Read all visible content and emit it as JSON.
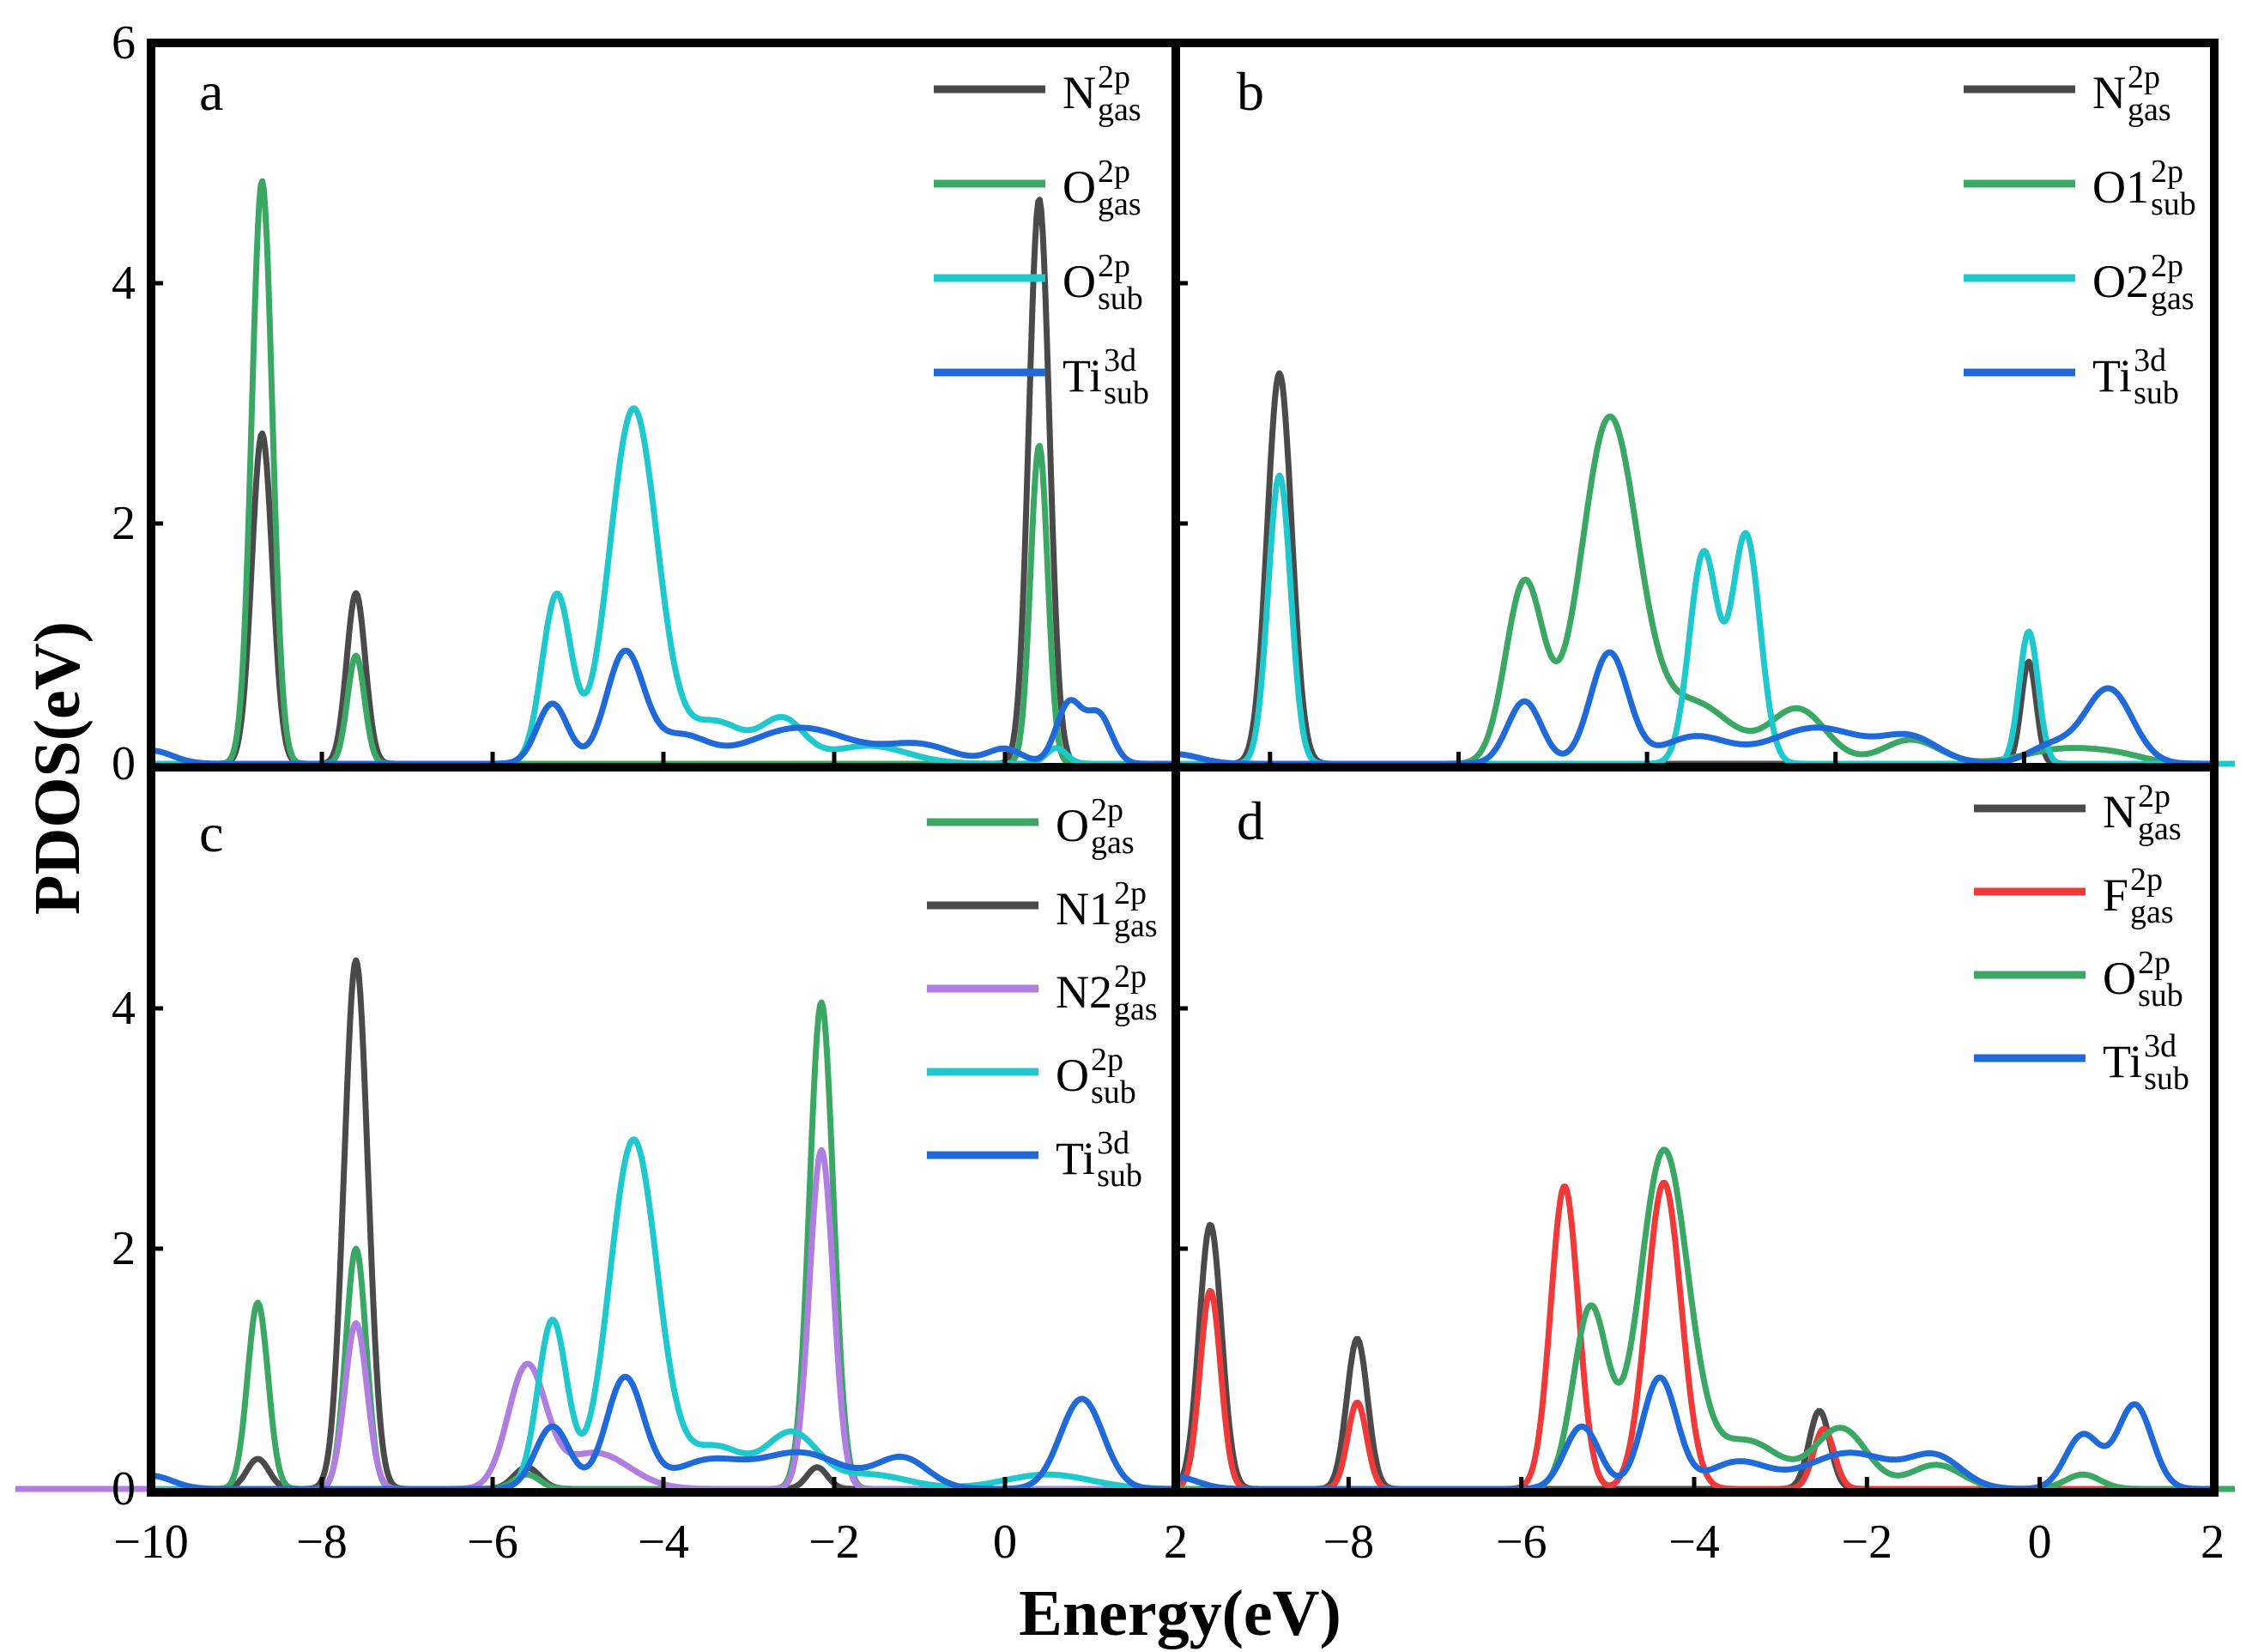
{
  "figure": {
    "ylabel": "PDOS(eV)",
    "xlabel": "Energy(eV)",
    "colors": {
      "gray": "#4a4a4a",
      "green": "#3aa864",
      "cyan": "#1ec8cc",
      "blue": "#1f6ad8",
      "purple": "#b07ee0",
      "red": "#f03a3a"
    }
  },
  "chart_data": [
    {
      "panel": "a",
      "type": "line",
      "xlim": [
        -10,
        2
      ],
      "ylim": [
        0,
        6
      ],
      "xticks": [
        "−10",
        "−8",
        "−6",
        "−4",
        "−2",
        "0",
        "2"
      ],
      "yticks": [
        "0",
        "2",
        "4",
        "6"
      ],
      "xlabel": "Energy(eV)",
      "ylabel": "PDOS(eV)",
      "legend": [
        {
          "base": "N",
          "sup": "2p",
          "sub": "gas",
          "color_key": "gray"
        },
        {
          "base": "O",
          "sup": "2p",
          "sub": "gas",
          "color_key": "green"
        },
        {
          "base": "O",
          "sup": "2p",
          "sub": "sub",
          "color_key": "cyan"
        },
        {
          "base": "Ti",
          "sup": "3d",
          "sub": "sub",
          "color_key": "blue"
        }
      ],
      "series": [
        {
          "name": "N_gas^2p",
          "color_key": "gray",
          "peaks": [
            [
              -8.7,
              2.75,
              0.12
            ],
            [
              -7.6,
              1.42,
              0.11
            ],
            [
              0.4,
              4.7,
              0.12
            ]
          ]
        },
        {
          "name": "O_gas^2p",
          "color_key": "green",
          "peaks": [
            [
              -8.7,
              4.85,
              0.12
            ],
            [
              -7.6,
              0.9,
              0.1
            ],
            [
              0.4,
              2.65,
              0.1
            ]
          ]
        },
        {
          "name": "O_sub^2p",
          "color_key": "cyan",
          "peaks": [
            [
              -5.25,
              1.4,
              0.17
            ],
            [
              -4.35,
              2.95,
              0.28
            ],
            [
              -3.4,
              0.35,
              0.35
            ],
            [
              -2.6,
              0.35,
              0.25
            ],
            [
              -1.6,
              0.15,
              0.45
            ],
            [
              0.6,
              0.13,
              0.12
            ]
          ]
        },
        {
          "name": "Ti_sub^3d",
          "color_key": "blue",
          "peaks": [
            [
              -10,
              0.11,
              0.25
            ],
            [
              -5.3,
              0.5,
              0.18
            ],
            [
              -4.45,
              0.92,
              0.22
            ],
            [
              -3.8,
              0.22,
              0.3
            ],
            [
              -2.4,
              0.3,
              0.6
            ],
            [
              -1.0,
              0.15,
              0.4
            ],
            [
              0.0,
              0.12,
              0.2
            ],
            [
              0.75,
              0.5,
              0.15
            ],
            [
              1.1,
              0.4,
              0.15
            ]
          ]
        }
      ]
    },
    {
      "panel": "b",
      "type": "line",
      "xlim": [
        -9,
        2
      ],
      "ylim": [
        0,
        6
      ],
      "xticks": [],
      "yticks": [],
      "legend": [
        {
          "base": "N",
          "sup": "2p",
          "sub": "gas",
          "color_key": "gray"
        },
        {
          "base": "O1",
          "sup": "2p",
          "sub": "sub",
          "color_key": "green"
        },
        {
          "base": "O2",
          "sup": "2p",
          "sub": "gas",
          "color_key": "cyan"
        },
        {
          "base": "Ti",
          "sup": "3d",
          "sub": "sub",
          "color_key": "blue"
        }
      ],
      "series": [
        {
          "name": "N_gas^2p",
          "color_key": "gray",
          "peaks": [
            [
              -7.9,
              3.25,
              0.13
            ],
            [
              0.05,
              0.85,
              0.08
            ]
          ]
        },
        {
          "name": "O1_sub^2p",
          "color_key": "green",
          "peaks": [
            [
              -5.3,
              1.5,
              0.2
            ],
            [
              -4.4,
              2.85,
              0.3
            ],
            [
              -3.5,
              0.5,
              0.4
            ],
            [
              -2.4,
              0.45,
              0.3
            ],
            [
              -1.2,
              0.2,
              0.3
            ],
            [
              0.4,
              0.12,
              0.4
            ],
            [
              1.0,
              0.06,
              0.3
            ]
          ]
        },
        {
          "name": "O2_gas^2p",
          "color_key": "cyan",
          "peaks": [
            [
              -7.9,
              2.4,
              0.12
            ],
            [
              -3.4,
              1.75,
              0.15
            ],
            [
              -2.95,
              1.9,
              0.15
            ],
            [
              0.05,
              1.1,
              0.1
            ]
          ]
        },
        {
          "name": "Ti_sub^3d",
          "color_key": "blue",
          "peaks": [
            [
              -9.0,
              0.08,
              0.25
            ],
            [
              -5.3,
              0.52,
              0.18
            ],
            [
              -4.4,
              0.92,
              0.2
            ],
            [
              -3.5,
              0.22,
              0.35
            ],
            [
              -2.2,
              0.3,
              0.5
            ],
            [
              -1.2,
              0.2,
              0.3
            ],
            [
              0.3,
              0.15,
              0.25
            ],
            [
              0.9,
              0.62,
              0.25
            ]
          ]
        }
      ]
    },
    {
      "panel": "c",
      "type": "line",
      "xlim": [
        -10,
        2
      ],
      "ylim": [
        0,
        6
      ],
      "xticks": [
        "−10",
        "−8",
        "−6",
        "−4",
        "−2",
        "0",
        "2"
      ],
      "yticks": [
        "0",
        "2",
        "4"
      ],
      "legend": [
        {
          "base": "O",
          "sup": "2p",
          "sub": "gas",
          "color_key": "green"
        },
        {
          "base": "N1",
          "sup": "2p",
          "sub": "gas",
          "color_key": "gray"
        },
        {
          "base": "N2",
          "sup": "2p",
          "sub": "gas",
          "color_key": "purple"
        },
        {
          "base": "O",
          "sup": "2p",
          "sub": "sub",
          "color_key": "cyan"
        },
        {
          "base": "Ti",
          "sup": "3d",
          "sub": "sub",
          "color_key": "blue"
        }
      ],
      "series": [
        {
          "name": "N1_gas^2p",
          "color_key": "gray",
          "peaks": [
            [
              -8.75,
              0.25,
              0.13
            ],
            [
              -7.6,
              4.4,
              0.14
            ],
            [
              -5.6,
              0.18,
              0.15
            ],
            [
              -2.2,
              0.18,
              0.12
            ]
          ]
        },
        {
          "name": "O_gas^2p",
          "color_key": "green",
          "peaks": [
            [
              -8.75,
              1.55,
              0.12
            ],
            [
              -7.6,
              2.0,
              0.12
            ],
            [
              -5.6,
              0.12,
              0.15
            ],
            [
              -2.15,
              4.05,
              0.14
            ]
          ]
        },
        {
          "name": "N2_gas^2p",
          "color_key": "purple",
          "peaks": [
            [
              -7.6,
              1.38,
              0.13
            ],
            [
              -5.6,
              1.0,
              0.22
            ],
            [
              -4.8,
              0.3,
              0.4
            ],
            [
              -2.15,
              2.82,
              0.14
            ]
          ]
        },
        {
          "name": "O_sub^2p",
          "color_key": "cyan",
          "peaks": [
            [
              -5.3,
              1.4,
              0.17
            ],
            [
              -4.35,
              2.9,
              0.28
            ],
            [
              -3.4,
              0.35,
              0.35
            ],
            [
              -2.5,
              0.45,
              0.3
            ],
            [
              -1.6,
              0.12,
              0.45
            ],
            [
              0.5,
              0.12,
              0.5
            ]
          ]
        },
        {
          "name": "Ti_sub^3d",
          "color_key": "blue",
          "peaks": [
            [
              -10,
              0.11,
              0.25
            ],
            [
              -5.3,
              0.52,
              0.2
            ],
            [
              -4.45,
              0.92,
              0.22
            ],
            [
              -3.5,
              0.22,
              0.4
            ],
            [
              -2.4,
              0.3,
              0.5
            ],
            [
              -1.2,
              0.25,
              0.3
            ],
            [
              0.9,
              0.75,
              0.25
            ]
          ]
        }
      ]
    },
    {
      "panel": "d",
      "type": "line",
      "xlim": [
        -10,
        2
      ],
      "ylim": [
        0,
        6
      ],
      "xticks": [
        "−8",
        "−6",
        "−4",
        "−2",
        "0",
        "2"
      ],
      "yticks": [],
      "legend": [
        {
          "base": "N",
          "sup": "2p",
          "sub": "gas",
          "color_key": "gray"
        },
        {
          "base": "F",
          "sup": "2p",
          "sub": "gas",
          "color_key": "red"
        },
        {
          "base": "O",
          "sup": "2p",
          "sub": "sub",
          "color_key": "green"
        },
        {
          "base": "Ti",
          "sup": "3d",
          "sub": "sub",
          "color_key": "blue"
        }
      ],
      "series": [
        {
          "name": "N_gas^2p",
          "color_key": "gray",
          "peaks": [
            [
              -9.6,
              2.2,
              0.13
            ],
            [
              -7.9,
              1.25,
              0.12
            ],
            [
              -2.55,
              0.65,
              0.12
            ]
          ]
        },
        {
          "name": "F_gas^2p",
          "color_key": "red",
          "peaks": [
            [
              -9.6,
              1.65,
              0.12
            ],
            [
              -7.9,
              0.72,
              0.11
            ],
            [
              -5.5,
              2.52,
              0.16
            ],
            [
              -4.35,
              2.55,
              0.2
            ],
            [
              -2.5,
              0.5,
              0.12
            ]
          ]
        },
        {
          "name": "O_sub^2p",
          "color_key": "green",
          "peaks": [
            [
              -5.2,
              1.5,
              0.2
            ],
            [
              -4.35,
              2.8,
              0.28
            ],
            [
              -3.4,
              0.4,
              0.4
            ],
            [
              -2.3,
              0.5,
              0.3
            ],
            [
              -1.2,
              0.2,
              0.3
            ],
            [
              0.5,
              0.12,
              0.2
            ]
          ]
        },
        {
          "name": "Ti_sub^3d",
          "color_key": "blue",
          "peaks": [
            [
              -10,
              0.1,
              0.25
            ],
            [
              -5.3,
              0.52,
              0.2
            ],
            [
              -4.4,
              0.92,
              0.2
            ],
            [
              -3.5,
              0.22,
              0.35
            ],
            [
              -2.2,
              0.3,
              0.5
            ],
            [
              -1.2,
              0.25,
              0.3
            ],
            [
              0.5,
              0.45,
              0.2
            ],
            [
              1.1,
              0.7,
              0.2
            ]
          ]
        }
      ]
    }
  ]
}
